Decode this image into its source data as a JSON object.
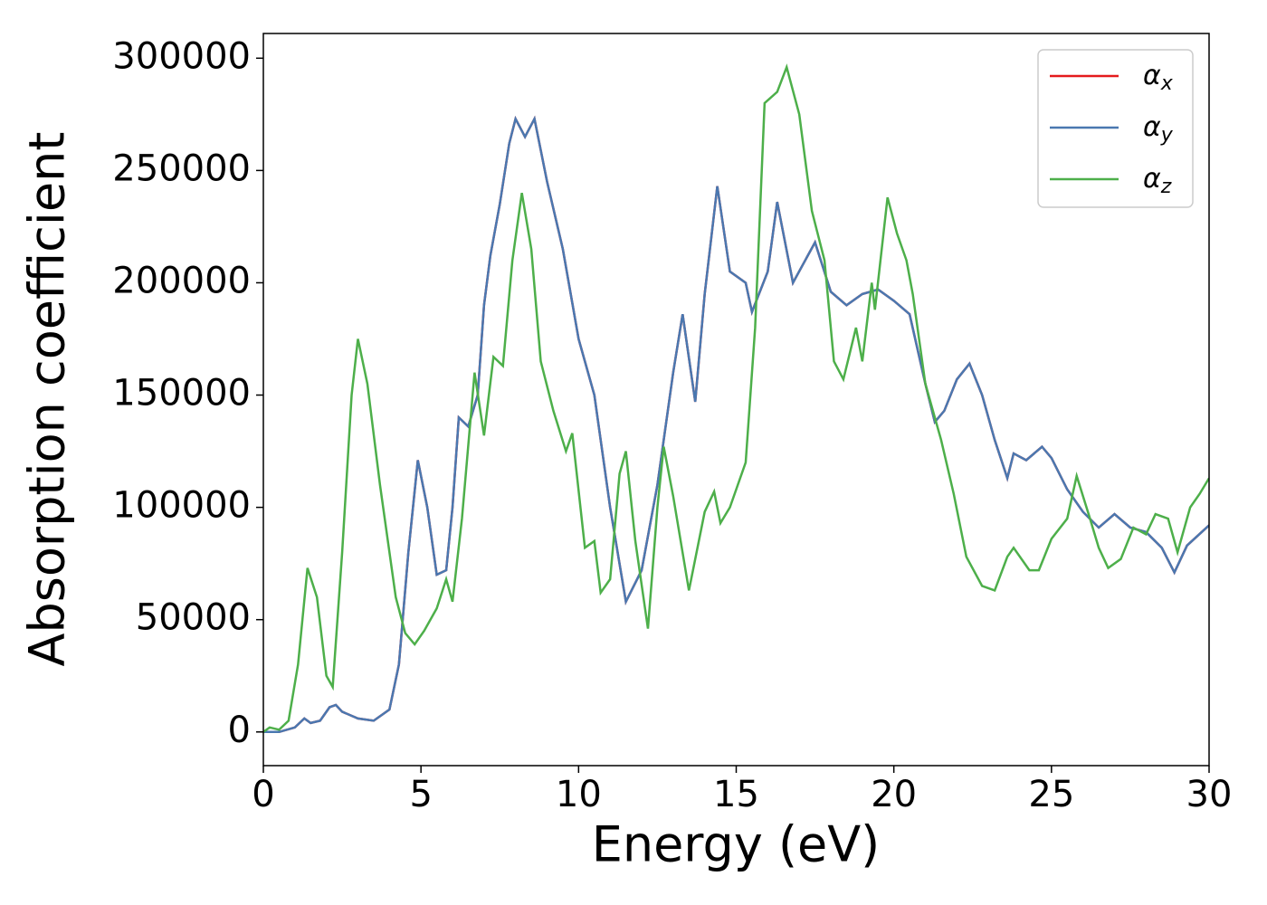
{
  "chart_data": {
    "type": "line",
    "x_label": "Energy (eV)",
    "y_label": "Absorption coefficient",
    "xlim": [
      0,
      30
    ],
    "ylim": [
      -15000,
      311000
    ],
    "xticks": [
      0,
      5,
      10,
      15,
      20,
      25,
      30
    ],
    "yticks": [
      0,
      50000,
      100000,
      150000,
      200000,
      250000,
      300000
    ],
    "legend": "upper right",
    "series": [
      {
        "name": "αx",
        "color": "#e41a1c",
        "x": [
          0,
          0.5,
          1.0,
          1.3,
          1.5,
          1.8,
          2.1,
          2.3,
          2.5,
          3.0,
          3.5,
          4.0,
          4.3,
          4.6,
          4.9,
          5.2,
          5.5,
          5.8,
          6.0,
          6.2,
          6.5,
          6.8,
          7.0,
          7.2,
          7.5,
          7.8,
          8.0,
          8.3,
          8.6,
          9.0,
          9.5,
          10.0,
          10.5,
          11.0,
          11.5,
          12.0,
          12.5,
          13.0,
          13.3,
          13.7,
          14.0,
          14.4,
          14.8,
          15.3,
          15.5,
          16.0,
          16.3,
          16.8,
          17.5,
          18.0,
          18.5,
          19.0,
          19.5,
          20.0,
          20.5,
          21.0,
          21.3,
          21.6,
          22.0,
          22.4,
          22.8,
          23.2,
          23.6,
          23.8,
          24.2,
          24.7,
          25.0,
          25.5,
          26.0,
          26.5,
          27.0,
          27.5,
          28.0,
          28.5,
          28.9,
          29.3,
          30.0
        ],
        "values": [
          0,
          0,
          2000,
          6000,
          4000,
          5000,
          11000,
          12000,
          9000,
          6000,
          5000,
          10000,
          30000,
          80000,
          121000,
          100000,
          70000,
          72000,
          100000,
          140000,
          136000,
          150000,
          190000,
          212000,
          235000,
          262000,
          273000,
          265000,
          273000,
          245000,
          215000,
          175000,
          150000,
          100000,
          58000,
          72000,
          110000,
          160000,
          186000,
          147000,
          195000,
          243000,
          205000,
          200000,
          187000,
          205000,
          236000,
          200000,
          218000,
          196000,
          190000,
          195000,
          197000,
          192000,
          186000,
          155000,
          138000,
          143000,
          157000,
          164000,
          150000,
          130000,
          113000,
          124000,
          121000,
          127000,
          122000,
          108000,
          98000,
          91000,
          97000,
          91000,
          89000,
          82000,
          71000,
          83000,
          92000
        ]
      },
      {
        "name": "αy",
        "color": "#4a78b0",
        "x": [
          0,
          0.5,
          1.0,
          1.3,
          1.5,
          1.8,
          2.1,
          2.3,
          2.5,
          3.0,
          3.5,
          4.0,
          4.3,
          4.6,
          4.9,
          5.2,
          5.5,
          5.8,
          6.0,
          6.2,
          6.5,
          6.8,
          7.0,
          7.2,
          7.5,
          7.8,
          8.0,
          8.3,
          8.6,
          9.0,
          9.5,
          10.0,
          10.5,
          11.0,
          11.5,
          12.0,
          12.5,
          13.0,
          13.3,
          13.7,
          14.0,
          14.4,
          14.8,
          15.3,
          15.5,
          16.0,
          16.3,
          16.8,
          17.5,
          18.0,
          18.5,
          19.0,
          19.5,
          20.0,
          20.5,
          21.0,
          21.3,
          21.6,
          22.0,
          22.4,
          22.8,
          23.2,
          23.6,
          23.8,
          24.2,
          24.7,
          25.0,
          25.5,
          26.0,
          26.5,
          27.0,
          27.5,
          28.0,
          28.5,
          28.9,
          29.3,
          30.0
        ],
        "values": [
          0,
          0,
          2000,
          6000,
          4000,
          5000,
          11000,
          12000,
          9000,
          6000,
          5000,
          10000,
          30000,
          80000,
          121000,
          100000,
          70000,
          72000,
          100000,
          140000,
          136000,
          150000,
          190000,
          212000,
          235000,
          262000,
          273000,
          265000,
          273000,
          245000,
          215000,
          175000,
          150000,
          100000,
          58000,
          72000,
          110000,
          160000,
          186000,
          147000,
          195000,
          243000,
          205000,
          200000,
          187000,
          205000,
          236000,
          200000,
          218000,
          196000,
          190000,
          195000,
          197000,
          192000,
          186000,
          155000,
          138000,
          143000,
          157000,
          164000,
          150000,
          130000,
          113000,
          124000,
          121000,
          127000,
          122000,
          108000,
          98000,
          91000,
          97000,
          91000,
          89000,
          82000,
          71000,
          83000,
          92000
        ]
      },
      {
        "name": "αz",
        "color": "#4daf4a",
        "x": [
          0,
          0.2,
          0.5,
          0.8,
          1.1,
          1.4,
          1.7,
          2.0,
          2.2,
          2.5,
          2.8,
          3.0,
          3.3,
          3.7,
          4.2,
          4.5,
          4.8,
          5.1,
          5.5,
          5.8,
          6.0,
          6.3,
          6.7,
          7.0,
          7.3,
          7.6,
          7.9,
          8.2,
          8.5,
          8.8,
          9.2,
          9.6,
          9.8,
          10.2,
          10.5,
          10.7,
          11.0,
          11.3,
          11.5,
          11.8,
          12.2,
          12.5,
          12.7,
          13.0,
          13.5,
          14.0,
          14.3,
          14.5,
          14.8,
          15.3,
          15.6,
          15.9,
          16.3,
          16.6,
          17.0,
          17.4,
          17.8,
          18.1,
          18.4,
          18.8,
          19.0,
          19.3,
          19.4,
          19.8,
          20.1,
          20.4,
          20.6,
          21.0,
          21.5,
          21.9,
          22.3,
          22.8,
          23.2,
          23.6,
          23.8,
          24.3,
          24.6,
          25.0,
          25.5,
          25.8,
          26.2,
          26.5,
          26.8,
          27.2,
          27.6,
          28.0,
          28.3,
          28.7,
          29.0,
          29.4,
          29.7,
          30.0
        ],
        "values": [
          0,
          2000,
          1000,
          5000,
          30000,
          73000,
          60000,
          25000,
          20000,
          80000,
          150000,
          175000,
          155000,
          110000,
          60000,
          44000,
          39000,
          45000,
          55000,
          68000,
          58000,
          95000,
          160000,
          132000,
          167000,
          163000,
          210000,
          240000,
          215000,
          165000,
          143000,
          125000,
          133000,
          82000,
          85000,
          62000,
          68000,
          115000,
          125000,
          85000,
          46000,
          100000,
          127000,
          105000,
          63000,
          98000,
          107000,
          93000,
          100000,
          120000,
          180000,
          280000,
          285000,
          296000,
          275000,
          232000,
          210000,
          165000,
          157000,
          180000,
          165000,
          200000,
          188000,
          238000,
          222000,
          210000,
          195000,
          155000,
          130000,
          106000,
          78000,
          65000,
          63000,
          78000,
          82000,
          72000,
          72000,
          86000,
          95000,
          114000,
          96000,
          82000,
          73000,
          77000,
          91000,
          88000,
          97000,
          95000,
          80000,
          100000,
          106000,
          113000
        ]
      }
    ]
  }
}
